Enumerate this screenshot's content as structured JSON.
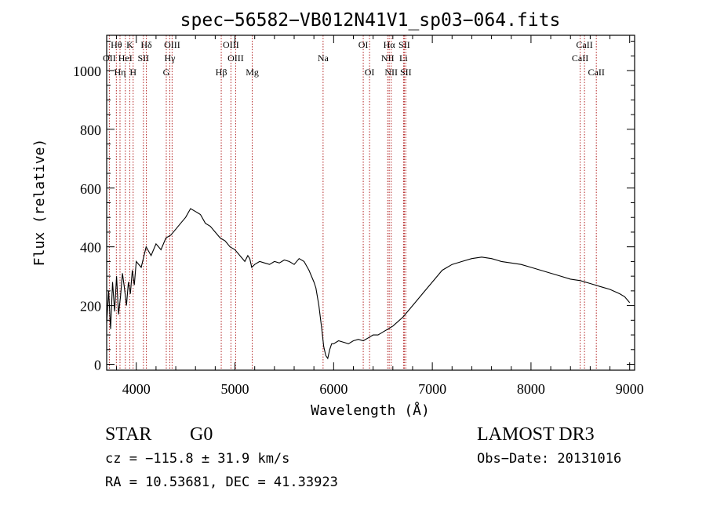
{
  "chart_data": {
    "type": "line",
    "title": "spec−56582−VB012N41V1_sp03−064.fits",
    "xlabel": "Wavelength (Å)",
    "ylabel": "Flux (relative)",
    "xlim": [
      3700,
      9050
    ],
    "ylim": [
      -20,
      1120
    ],
    "xticks": [
      4000,
      5000,
      6000,
      7000,
      8000,
      9000
    ],
    "yticks": [
      0,
      200,
      400,
      600,
      800,
      1000
    ],
    "grid": false,
    "series": [
      {
        "name": "flux",
        "x": [
          3700,
          3720,
          3740,
          3760,
          3780,
          3800,
          3820,
          3840,
          3860,
          3880,
          3900,
          3920,
          3940,
          3960,
          3980,
          4000,
          4050,
          4100,
          4150,
          4200,
          4250,
          4300,
          4350,
          4400,
          4450,
          4500,
          4550,
          4600,
          4650,
          4700,
          4750,
          4800,
          4850,
          4900,
          4950,
          5000,
          5050,
          5100,
          5130,
          5150,
          5170,
          5200,
          5250,
          5300,
          5350,
          5400,
          5450,
          5500,
          5550,
          5600,
          5650,
          5700,
          5750,
          5800,
          5820,
          5850,
          5880,
          5900,
          5920,
          5940,
          5960,
          5980,
          6000,
          6050,
          6100,
          6150,
          6200,
          6250,
          6300,
          6350,
          6400,
          6450,
          6500,
          6550,
          6600,
          6650,
          6700,
          6750,
          6800,
          6850,
          6900,
          6950,
          7000,
          7050,
          7100,
          7150,
          7200,
          7300,
          7400,
          7500,
          7600,
          7700,
          7800,
          7900,
          8000,
          8100,
          8200,
          8300,
          8400,
          8500,
          8600,
          8700,
          8800,
          8900,
          8950,
          9000
        ],
        "y": [
          140,
          250,
          120,
          280,
          180,
          300,
          170,
          230,
          310,
          260,
          200,
          280,
          240,
          320,
          270,
          350,
          330,
          400,
          370,
          410,
          390,
          430,
          440,
          460,
          480,
          500,
          530,
          520,
          510,
          480,
          470,
          450,
          430,
          420,
          400,
          390,
          370,
          350,
          370,
          360,
          330,
          340,
          350,
          345,
          340,
          350,
          345,
          355,
          350,
          340,
          360,
          350,
          320,
          280,
          260,
          200,
          120,
          60,
          30,
          20,
          50,
          70,
          70,
          80,
          75,
          70,
          80,
          85,
          80,
          90,
          100,
          100,
          110,
          120,
          130,
          145,
          160,
          180,
          200,
          220,
          240,
          260,
          280,
          300,
          320,
          330,
          340,
          350,
          360,
          365,
          360,
          350,
          345,
          340,
          330,
          320,
          310,
          300,
          290,
          285,
          275,
          265,
          255,
          240,
          230,
          210
        ]
      }
    ],
    "spectral_lines": [
      {
        "label": "Hθ",
        "x": 3798,
        "row": 1
      },
      {
        "label": "OII",
        "x": 3727,
        "row": 2
      },
      {
        "label": "Hη",
        "x": 3835,
        "row": 3
      },
      {
        "label": "HeI",
        "x": 3889,
        "row": 2
      },
      {
        "label": "K",
        "x": 3934,
        "row": 1
      },
      {
        "label": "H",
        "x": 3968,
        "row": 3
      },
      {
        "label": "SII",
        "x": 4072,
        "row": 2
      },
      {
        "label": "Hδ",
        "x": 4102,
        "row": 1
      },
      {
        "label": "OIII",
        "x": 4363,
        "row": 1
      },
      {
        "label": "Hγ",
        "x": 4340,
        "row": 2
      },
      {
        "label": "G",
        "x": 4304,
        "row": 3
      },
      {
        "label": "OIII",
        "x": 4959,
        "row": 1
      },
      {
        "label": "OIII",
        "x": 5007,
        "row": 2
      },
      {
        "label": "Hβ",
        "x": 4861,
        "row": 3
      },
      {
        "label": "Mg",
        "x": 5175,
        "row": 3
      },
      {
        "label": "Na",
        "x": 5893,
        "row": 2
      },
      {
        "label": "OI",
        "x": 6300,
        "row": 1
      },
      {
        "label": "OI",
        "x": 6364,
        "row": 3
      },
      {
        "label": "Hα",
        "x": 6563,
        "row": 1
      },
      {
        "label": "NII",
        "x": 6548,
        "row": 2
      },
      {
        "label": "NII",
        "x": 6583,
        "row": 3
      },
      {
        "label": "SII",
        "x": 6716,
        "row": 1
      },
      {
        "label": "Li",
        "x": 6708,
        "row": 2
      },
      {
        "label": "SII",
        "x": 6731,
        "row": 3
      },
      {
        "label": "CaII",
        "x": 8542,
        "row": 1
      },
      {
        "label": "CaII",
        "x": 8498,
        "row": 2
      },
      {
        "label": "CaII",
        "x": 8662,
        "row": 3
      }
    ],
    "colors": {
      "line": "#000000",
      "marker": "#b22222",
      "frame": "#000000"
    }
  },
  "footer": {
    "object_class": "STAR",
    "subclass": "G0",
    "survey": "LAMOST DR3",
    "cz": "cz = −115.8 ± 31.9 km/s",
    "obs_date": "Obs−Date: 20131016",
    "coords": "RA =  10.53681, DEC =  41.33923"
  }
}
